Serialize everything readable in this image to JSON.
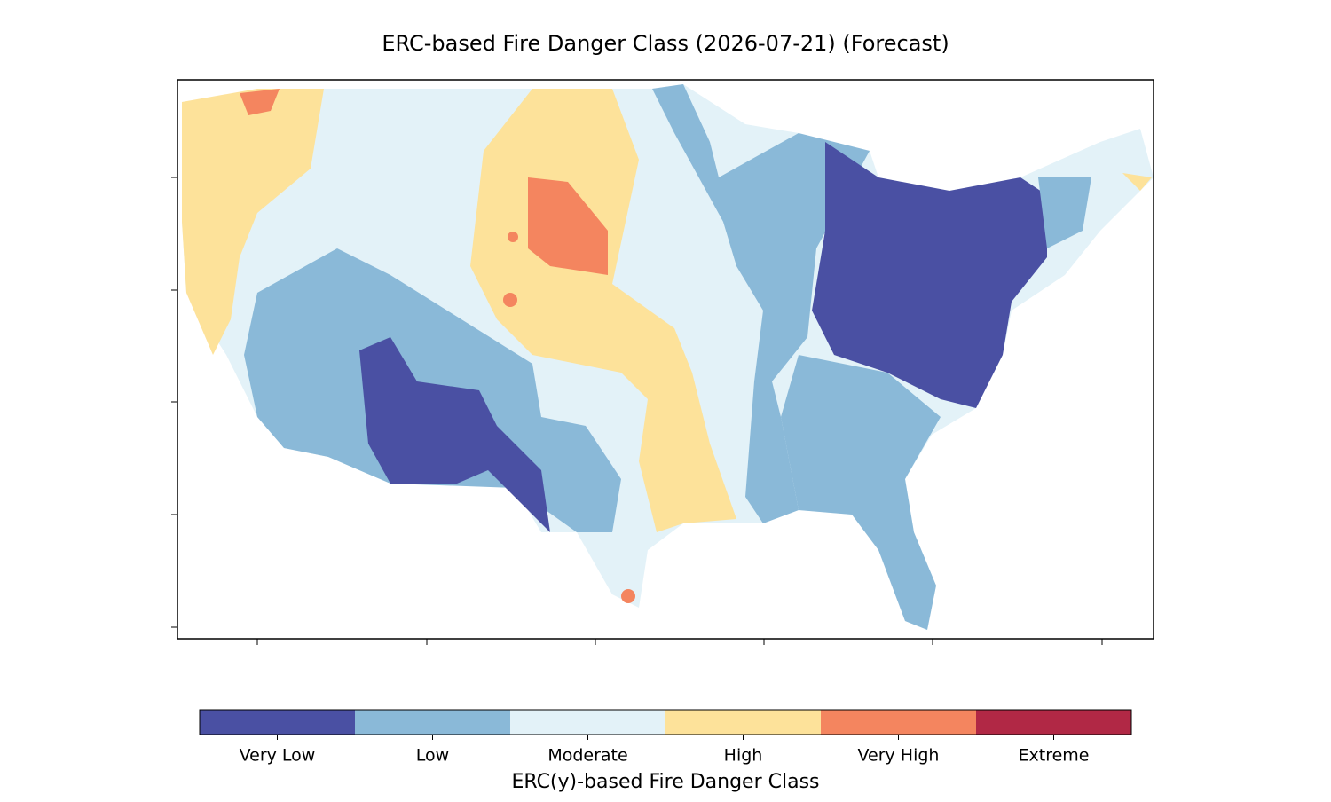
{
  "chart_data": {
    "type": "map",
    "title": "ERC-based Fire Danger Class (2026-07-21) (Forecast)",
    "colorbar": {
      "label": "ERC(y)-based Fire Danger Class",
      "classes": [
        {
          "name": "Very Low",
          "color": "#4a50a3"
        },
        {
          "name": "Low",
          "color": "#8ab9d8"
        },
        {
          "name": "Moderate",
          "color": "#e3f2f8"
        },
        {
          "name": "High",
          "color": "#fde29a"
        },
        {
          "name": "Very High",
          "color": "#f4855f"
        },
        {
          "name": "Extreme",
          "color": "#b12845"
        }
      ]
    }
  }
}
